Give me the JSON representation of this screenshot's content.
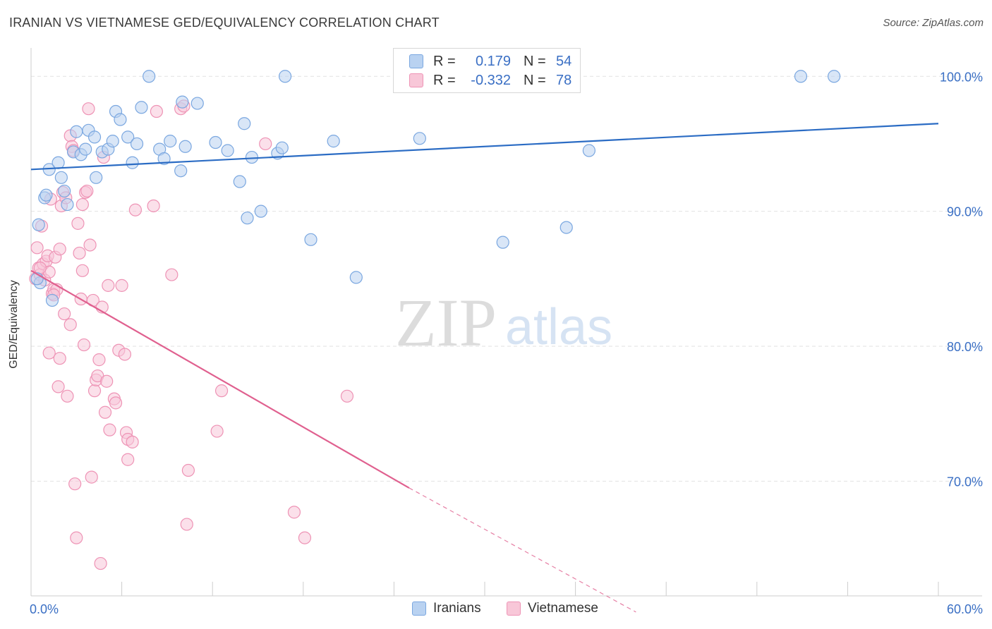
{
  "title": "IRANIAN VS VIETNAMESE GED/EQUIVALENCY CORRELATION CHART",
  "source": "Source: ZipAtlas.com",
  "watermark": {
    "zip": "ZIP",
    "atlas": "atlas"
  },
  "colors": {
    "iranians": "#7aa7e0",
    "iranians_fill": "#b9d2f1",
    "iranians_line": "#2b6cc4",
    "vietnamese": "#ee93b5",
    "vietnamese_fill": "#f8c7d8",
    "vietnamese_line": "#e0608f",
    "axis_text": "#3a6fc4"
  },
  "legend": {
    "iranians": {
      "r_label": "R =",
      "r_value": "0.179",
      "n_label": "N =",
      "n_value": "54"
    },
    "vietnamese": {
      "r_label": "R =",
      "r_value": "-0.332",
      "n_label": "N =",
      "n_value": "78"
    }
  },
  "bottom_legend": [
    "Iranians",
    "Vietnamese"
  ],
  "chart_data": {
    "type": "scatter",
    "title": "IRANIAN VS VIETNAMESE GED/EQUIVALENCY CORRELATION CHART",
    "xlabel": "",
    "ylabel": "GED/Equivalency",
    "xlim": [
      0,
      60
    ],
    "ylim": [
      61.5,
      102
    ],
    "x_tick_labels": [
      "0.0%",
      "60.0%"
    ],
    "y_ticks": [
      70,
      80,
      90,
      100
    ],
    "y_tick_labels": [
      "70.0%",
      "80.0%",
      "90.0%",
      "100.0%"
    ],
    "grid": "horizontal-dashed",
    "legend_position": "top-center",
    "series": [
      {
        "name": "Iranians",
        "r": 0.179,
        "n": 54,
        "trend": {
          "x": [
            0,
            60
          ],
          "y": [
            93.1,
            96.5
          ],
          "style": "solid"
        },
        "points": [
          [
            0.5,
            89.0
          ],
          [
            0.6,
            84.7
          ],
          [
            0.9,
            91.0
          ],
          [
            1.0,
            91.2
          ],
          [
            1.2,
            93.1
          ],
          [
            1.4,
            83.4
          ],
          [
            1.8,
            93.6
          ],
          [
            2.0,
            92.5
          ],
          [
            2.2,
            91.5
          ],
          [
            2.4,
            90.5
          ],
          [
            2.8,
            94.4
          ],
          [
            3.0,
            95.9
          ],
          [
            3.3,
            94.2
          ],
          [
            3.6,
            94.6
          ],
          [
            3.8,
            96.0
          ],
          [
            4.2,
            95.5
          ],
          [
            4.3,
            92.5
          ],
          [
            4.7,
            94.4
          ],
          [
            5.1,
            94.6
          ],
          [
            5.4,
            95.2
          ],
          [
            5.6,
            97.4
          ],
          [
            5.9,
            96.8
          ],
          [
            6.4,
            95.5
          ],
          [
            6.7,
            93.6
          ],
          [
            7.0,
            95.0
          ],
          [
            7.3,
            97.7
          ],
          [
            7.8,
            100.0
          ],
          [
            8.5,
            94.6
          ],
          [
            8.8,
            93.9
          ],
          [
            9.2,
            95.2
          ],
          [
            9.9,
            93.0
          ],
          [
            10.0,
            98.1
          ],
          [
            10.2,
            94.8
          ],
          [
            11.0,
            98.0
          ],
          [
            12.2,
            95.1
          ],
          [
            13.0,
            94.5
          ],
          [
            13.8,
            92.2
          ],
          [
            14.1,
            96.5
          ],
          [
            14.3,
            89.5
          ],
          [
            14.6,
            94.0
          ],
          [
            15.2,
            90.0
          ],
          [
            16.3,
            94.3
          ],
          [
            16.6,
            94.7
          ],
          [
            16.8,
            100.0
          ],
          [
            18.5,
            87.9
          ],
          [
            20.0,
            95.2
          ],
          [
            21.5,
            85.1
          ],
          [
            25.7,
            95.4
          ],
          [
            31.2,
            87.7
          ],
          [
            35.4,
            88.8
          ],
          [
            36.9,
            94.5
          ],
          [
            50.9,
            100.0
          ],
          [
            53.1,
            100.0
          ],
          [
            0.4,
            85.0
          ]
        ]
      },
      {
        "name": "Vietnamese",
        "r": -0.332,
        "n": 78,
        "trend": {
          "x": [
            0,
            25
          ],
          "y": [
            85.6,
            69.5
          ],
          "style": "solid",
          "extended": {
            "x": [
              25,
              40
            ],
            "y": [
              69.5,
              60.3
            ],
            "style": "dashed"
          }
        },
        "points": [
          [
            0.3,
            85.0
          ],
          [
            0.4,
            87.3
          ],
          [
            0.5,
            85.8
          ],
          [
            0.6,
            85.3
          ],
          [
            0.7,
            88.9
          ],
          [
            0.8,
            86.1
          ],
          [
            0.9,
            84.9
          ],
          [
            1.0,
            86.3
          ],
          [
            1.1,
            86.7
          ],
          [
            1.2,
            85.5
          ],
          [
            1.2,
            79.5
          ],
          [
            1.3,
            90.9
          ],
          [
            1.4,
            83.9
          ],
          [
            1.5,
            84.2
          ],
          [
            1.6,
            86.6
          ],
          [
            1.7,
            84.2
          ],
          [
            1.8,
            77.0
          ],
          [
            1.9,
            79.1
          ],
          [
            1.9,
            87.2
          ],
          [
            2.0,
            90.4
          ],
          [
            2.1,
            91.4
          ],
          [
            2.2,
            82.4
          ],
          [
            2.3,
            91.0
          ],
          [
            2.4,
            76.3
          ],
          [
            2.6,
            81.6
          ],
          [
            2.6,
            95.6
          ],
          [
            2.7,
            94.8
          ],
          [
            2.8,
            94.5
          ],
          [
            2.9,
            69.8
          ],
          [
            3.0,
            65.8
          ],
          [
            3.1,
            89.1
          ],
          [
            3.2,
            86.9
          ],
          [
            3.3,
            83.5
          ],
          [
            3.4,
            90.5
          ],
          [
            3.4,
            85.6
          ],
          [
            3.5,
            80.1
          ],
          [
            3.6,
            91.4
          ],
          [
            3.7,
            91.5
          ],
          [
            3.8,
            97.6
          ],
          [
            3.9,
            87.5
          ],
          [
            4.0,
            70.3
          ],
          [
            4.1,
            83.4
          ],
          [
            4.2,
            76.7
          ],
          [
            4.3,
            77.5
          ],
          [
            4.4,
            77.8
          ],
          [
            4.5,
            79.0
          ],
          [
            4.6,
            63.9
          ],
          [
            4.7,
            82.9
          ],
          [
            4.8,
            94.0
          ],
          [
            4.9,
            75.1
          ],
          [
            5.0,
            77.4
          ],
          [
            5.1,
            84.5
          ],
          [
            5.2,
            73.8
          ],
          [
            5.5,
            76.1
          ],
          [
            5.6,
            75.8
          ],
          [
            5.8,
            79.7
          ],
          [
            6.0,
            84.5
          ],
          [
            6.2,
            79.4
          ],
          [
            6.3,
            73.6
          ],
          [
            6.4,
            73.1
          ],
          [
            6.4,
            71.6
          ],
          [
            6.7,
            72.9
          ],
          [
            6.9,
            90.1
          ],
          [
            8.1,
            90.4
          ],
          [
            8.3,
            97.4
          ],
          [
            9.3,
            85.3
          ],
          [
            9.9,
            97.6
          ],
          [
            10.1,
            97.8
          ],
          [
            10.3,
            66.8
          ],
          [
            10.4,
            70.8
          ],
          [
            12.3,
            73.7
          ],
          [
            12.6,
            76.7
          ],
          [
            15.5,
            95.0
          ],
          [
            17.4,
            67.7
          ],
          [
            18.1,
            65.8
          ],
          [
            20.9,
            76.3
          ],
          [
            1.5,
            83.8
          ],
          [
            0.6,
            85.8
          ]
        ]
      }
    ]
  }
}
